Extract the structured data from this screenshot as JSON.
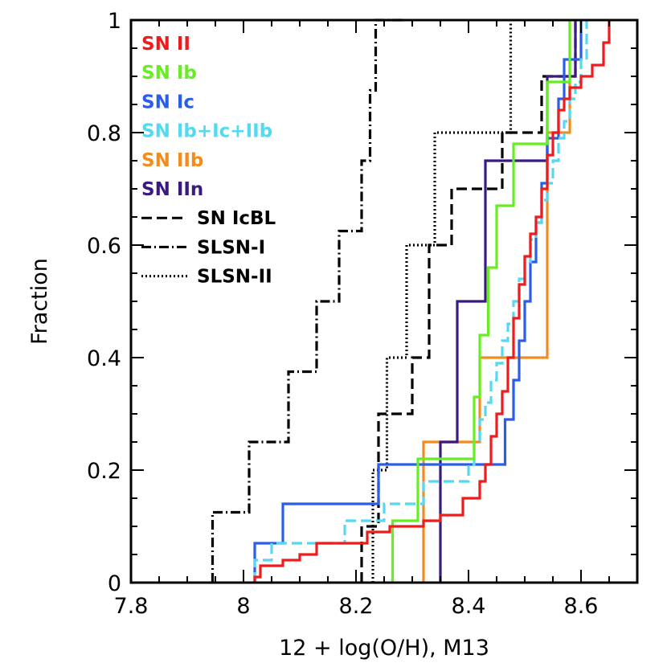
{
  "chart_data": {
    "type": "line",
    "subtype": "cumulative-step",
    "xlabel": "12 + log(O/H), M13",
    "ylabel": "Fraction",
    "xlim": [
      7.8,
      8.7
    ],
    "ylim": [
      0,
      1
    ],
    "x_ticks": [
      {
        "value": 7.8,
        "label": "7.8"
      },
      {
        "value": 8.0,
        "label": "8"
      },
      {
        "value": 8.2,
        "label": "8.2"
      },
      {
        "value": 8.4,
        "label": "8.4"
      },
      {
        "value": 8.6,
        "label": "8.6"
      }
    ],
    "y_ticks": [
      {
        "value": 0,
        "label": "0"
      },
      {
        "value": 0.2,
        "label": "0.2"
      },
      {
        "value": 0.4,
        "label": "0.4"
      },
      {
        "value": 0.6,
        "label": "0.6"
      },
      {
        "value": 0.8,
        "label": "0.8"
      },
      {
        "value": 1,
        "label": "1"
      }
    ],
    "legend_position": "top-left",
    "series": [
      {
        "name": "SN II",
        "color": "#ee1c1c",
        "dash": "solid",
        "x": [
          8.02,
          8.03,
          8.07,
          8.1,
          8.13,
          8.22,
          8.26,
          8.32,
          8.35,
          8.39,
          8.42,
          8.43,
          8.44,
          8.45,
          8.46,
          8.47,
          8.48,
          8.49,
          8.5,
          8.51,
          8.52,
          8.53,
          8.54,
          8.55,
          8.56,
          8.57,
          8.58,
          8.6,
          8.62,
          8.64,
          8.65
        ],
        "y": [
          0.01,
          0.03,
          0.04,
          0.05,
          0.07,
          0.09,
          0.1,
          0.11,
          0.12,
          0.15,
          0.18,
          0.21,
          0.26,
          0.3,
          0.34,
          0.4,
          0.47,
          0.53,
          0.58,
          0.62,
          0.65,
          0.7,
          0.76,
          0.8,
          0.84,
          0.86,
          0.88,
          0.9,
          0.92,
          0.96,
          1.0
        ]
      },
      {
        "name": "SN Ib",
        "color": "#66ee22",
        "dash": "solid",
        "x": [
          8.265,
          8.31,
          8.35,
          8.41,
          8.42,
          8.435,
          8.45,
          8.47,
          8.48,
          8.52,
          8.54,
          8.55,
          8.58
        ],
        "y": [
          0.11,
          0.22,
          0.22,
          0.33,
          0.44,
          0.56,
          0.67,
          0.67,
          0.78,
          0.78,
          0.89,
          0.89,
          1.0
        ]
      },
      {
        "name": "SN Ic",
        "color": "#2a5ee8",
        "dash": "solid",
        "x": [
          8.02,
          8.07,
          8.24,
          8.42,
          8.465,
          8.48,
          8.49,
          8.5,
          8.51,
          8.52,
          8.53,
          8.54,
          8.56,
          8.57,
          8.6
        ],
        "y": [
          0.07,
          0.14,
          0.21,
          0.21,
          0.29,
          0.36,
          0.43,
          0.5,
          0.57,
          0.64,
          0.71,
          0.79,
          0.86,
          0.93,
          1.0
        ]
      },
      {
        "name": "SN Ib+Ic+IIb",
        "color": "#55d8f2",
        "dash": "dashed",
        "x": [
          8.02,
          8.05,
          8.18,
          8.25,
          8.32,
          8.35,
          8.4,
          8.41,
          8.42,
          8.43,
          8.44,
          8.45,
          8.46,
          8.47,
          8.48,
          8.49,
          8.5,
          8.51,
          8.52,
          8.53,
          8.54,
          8.55,
          8.56,
          8.57,
          8.58,
          8.59,
          8.6,
          8.61
        ],
        "y": [
          0.04,
          0.07,
          0.11,
          0.14,
          0.18,
          0.18,
          0.21,
          0.25,
          0.29,
          0.32,
          0.36,
          0.39,
          0.43,
          0.46,
          0.5,
          0.54,
          0.57,
          0.61,
          0.64,
          0.68,
          0.71,
          0.75,
          0.79,
          0.82,
          0.86,
          0.89,
          0.93,
          1.0
        ]
      },
      {
        "name": "SN IIb",
        "color": "#f28c1e",
        "dash": "solid",
        "x": [
          8.32,
          8.42,
          8.54,
          8.58
        ],
        "y": [
          0.25,
          0.4,
          0.8,
          1.0
        ]
      },
      {
        "name": "SN IIn",
        "color": "#3a1a80",
        "dash": "solid",
        "x": [
          8.35,
          8.38,
          8.43,
          8.46,
          8.54,
          8.59
        ],
        "y": [
          0.25,
          0.5,
          0.75,
          0.75,
          0.9,
          1.0
        ]
      },
      {
        "name": "SN IcBL",
        "color": "#000000",
        "dash": "dashed",
        "x": [
          8.21,
          8.24,
          8.3,
          8.33,
          8.37,
          8.4,
          8.46,
          8.5,
          8.53,
          8.59
        ],
        "y": [
          0.1,
          0.3,
          0.4,
          0.6,
          0.7,
          0.7,
          0.8,
          0.8,
          0.9,
          1.0
        ]
      },
      {
        "name": "SLSN-I",
        "color": "#000000",
        "dash": "dashdot",
        "x": [
          7.945,
          8.01,
          8.08,
          8.13,
          8.17,
          8.21,
          8.225,
          8.235,
          8.27,
          8.285
        ],
        "y": [
          0.125,
          0.25,
          0.375,
          0.5,
          0.625,
          0.75,
          0.875,
          1.0,
          1.0,
          1.0
        ]
      },
      {
        "name": "SLSN-II",
        "color": "#000000",
        "dash": "dotted",
        "x": [
          8.23,
          8.255,
          8.29,
          8.34,
          8.43,
          8.475
        ],
        "y": [
          0.2,
          0.4,
          0.6,
          0.8,
          0.8,
          1.0
        ]
      }
    ]
  }
}
